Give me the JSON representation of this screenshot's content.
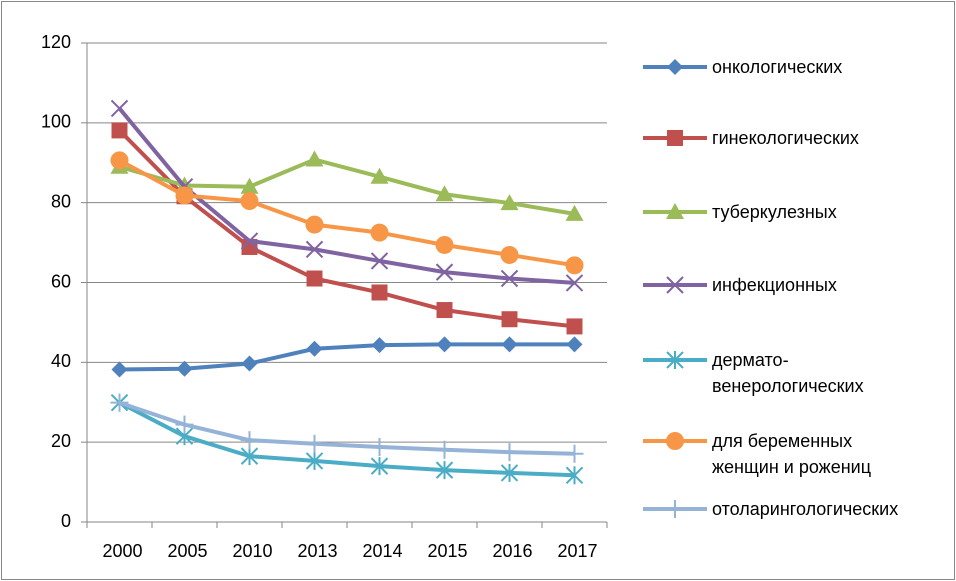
{
  "chart_data": {
    "type": "line",
    "categories": [
      "2000",
      "2005",
      "2010",
      "2013",
      "2014",
      "2015",
      "2016",
      "2017"
    ],
    "ylim": [
      0,
      120
    ],
    "yticks": [
      0,
      20,
      40,
      60,
      80,
      100,
      120
    ],
    "grid": true,
    "legend": "right",
    "series": [
      {
        "name": "онкологических",
        "color": "#4f81bd",
        "marker": "diamond",
        "values": [
          38.2,
          38.4,
          39.7,
          43.4,
          44.3,
          44.5,
          44.5,
          44.5
        ]
      },
      {
        "name": "гинекологических",
        "color": "#c0504d",
        "marker": "square",
        "values": [
          98.1,
          81.6,
          68.9,
          61.0,
          57.5,
          53.1,
          50.8,
          49.0
        ]
      },
      {
        "name": "туберкулезных",
        "color": "#9bbb59",
        "marker": "triangle",
        "values": [
          89.0,
          84.3,
          84.0,
          90.8,
          86.5,
          82.1,
          79.9,
          77.2
        ]
      },
      {
        "name": "инфекционных",
        "color": "#8064a2",
        "marker": "x",
        "values": [
          103.6,
          84.0,
          70.4,
          68.3,
          65.4,
          62.6,
          61.0,
          59.9
        ]
      },
      {
        "name": "дермато-\nвенерологических",
        "color": "#4bacc6",
        "marker": "star",
        "values": [
          29.9,
          21.5,
          16.5,
          15.3,
          14.0,
          13.0,
          12.3,
          11.7
        ]
      },
      {
        "name": "для беременных\nженщин и рожениц",
        "color": "#f79646",
        "marker": "circle",
        "values": [
          90.6,
          81.8,
          80.4,
          74.5,
          72.5,
          69.4,
          66.9,
          64.3
        ]
      },
      {
        "name": "отоларингологических",
        "color": "#95b3d7",
        "marker": "plus",
        "values": [
          29.9,
          24.4,
          20.5,
          19.6,
          18.8,
          18.1,
          17.5,
          17.1
        ]
      }
    ]
  }
}
